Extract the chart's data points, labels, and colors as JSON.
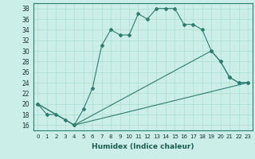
{
  "xlabel": "Humidex (Indice chaleur)",
  "bg_color": "#cceee8",
  "line_color": "#2e7d6e",
  "grid_color": "#aaddcc",
  "xlim": [
    -0.5,
    23.5
  ],
  "ylim": [
    15.0,
    39.0
  ],
  "yticks": [
    16,
    18,
    20,
    22,
    24,
    26,
    28,
    30,
    32,
    34,
    36,
    38
  ],
  "xticks": [
    0,
    1,
    2,
    3,
    4,
    5,
    6,
    7,
    8,
    9,
    10,
    11,
    12,
    13,
    14,
    15,
    16,
    17,
    18,
    19,
    20,
    21,
    22,
    23
  ],
  "xtick_labels": [
    "0",
    "1",
    "2",
    "3",
    "4",
    "5",
    "6",
    "7",
    "8",
    "9",
    "10",
    "11",
    "12",
    "13",
    "14",
    "15",
    "16",
    "17",
    "18",
    "19",
    "20",
    "21",
    "22",
    "23"
  ],
  "series": [
    {
      "x": [
        0,
        1,
        2,
        3,
        4,
        5,
        6,
        7,
        8,
        9,
        10,
        11,
        12,
        13,
        14,
        15,
        16,
        17,
        18,
        19,
        20,
        21,
        22,
        23
      ],
      "y": [
        20,
        18,
        18,
        17,
        16,
        19,
        23,
        31,
        34,
        33,
        33,
        37,
        36,
        38,
        38,
        38,
        35,
        35,
        34,
        30,
        28,
        25,
        24,
        24
      ]
    },
    {
      "x": [
        0,
        4,
        19,
        20,
        21,
        22,
        23
      ],
      "y": [
        20,
        16,
        30,
        28,
        25,
        24,
        24
      ]
    },
    {
      "x": [
        0,
        4,
        23
      ],
      "y": [
        20,
        16,
        24
      ]
    }
  ]
}
